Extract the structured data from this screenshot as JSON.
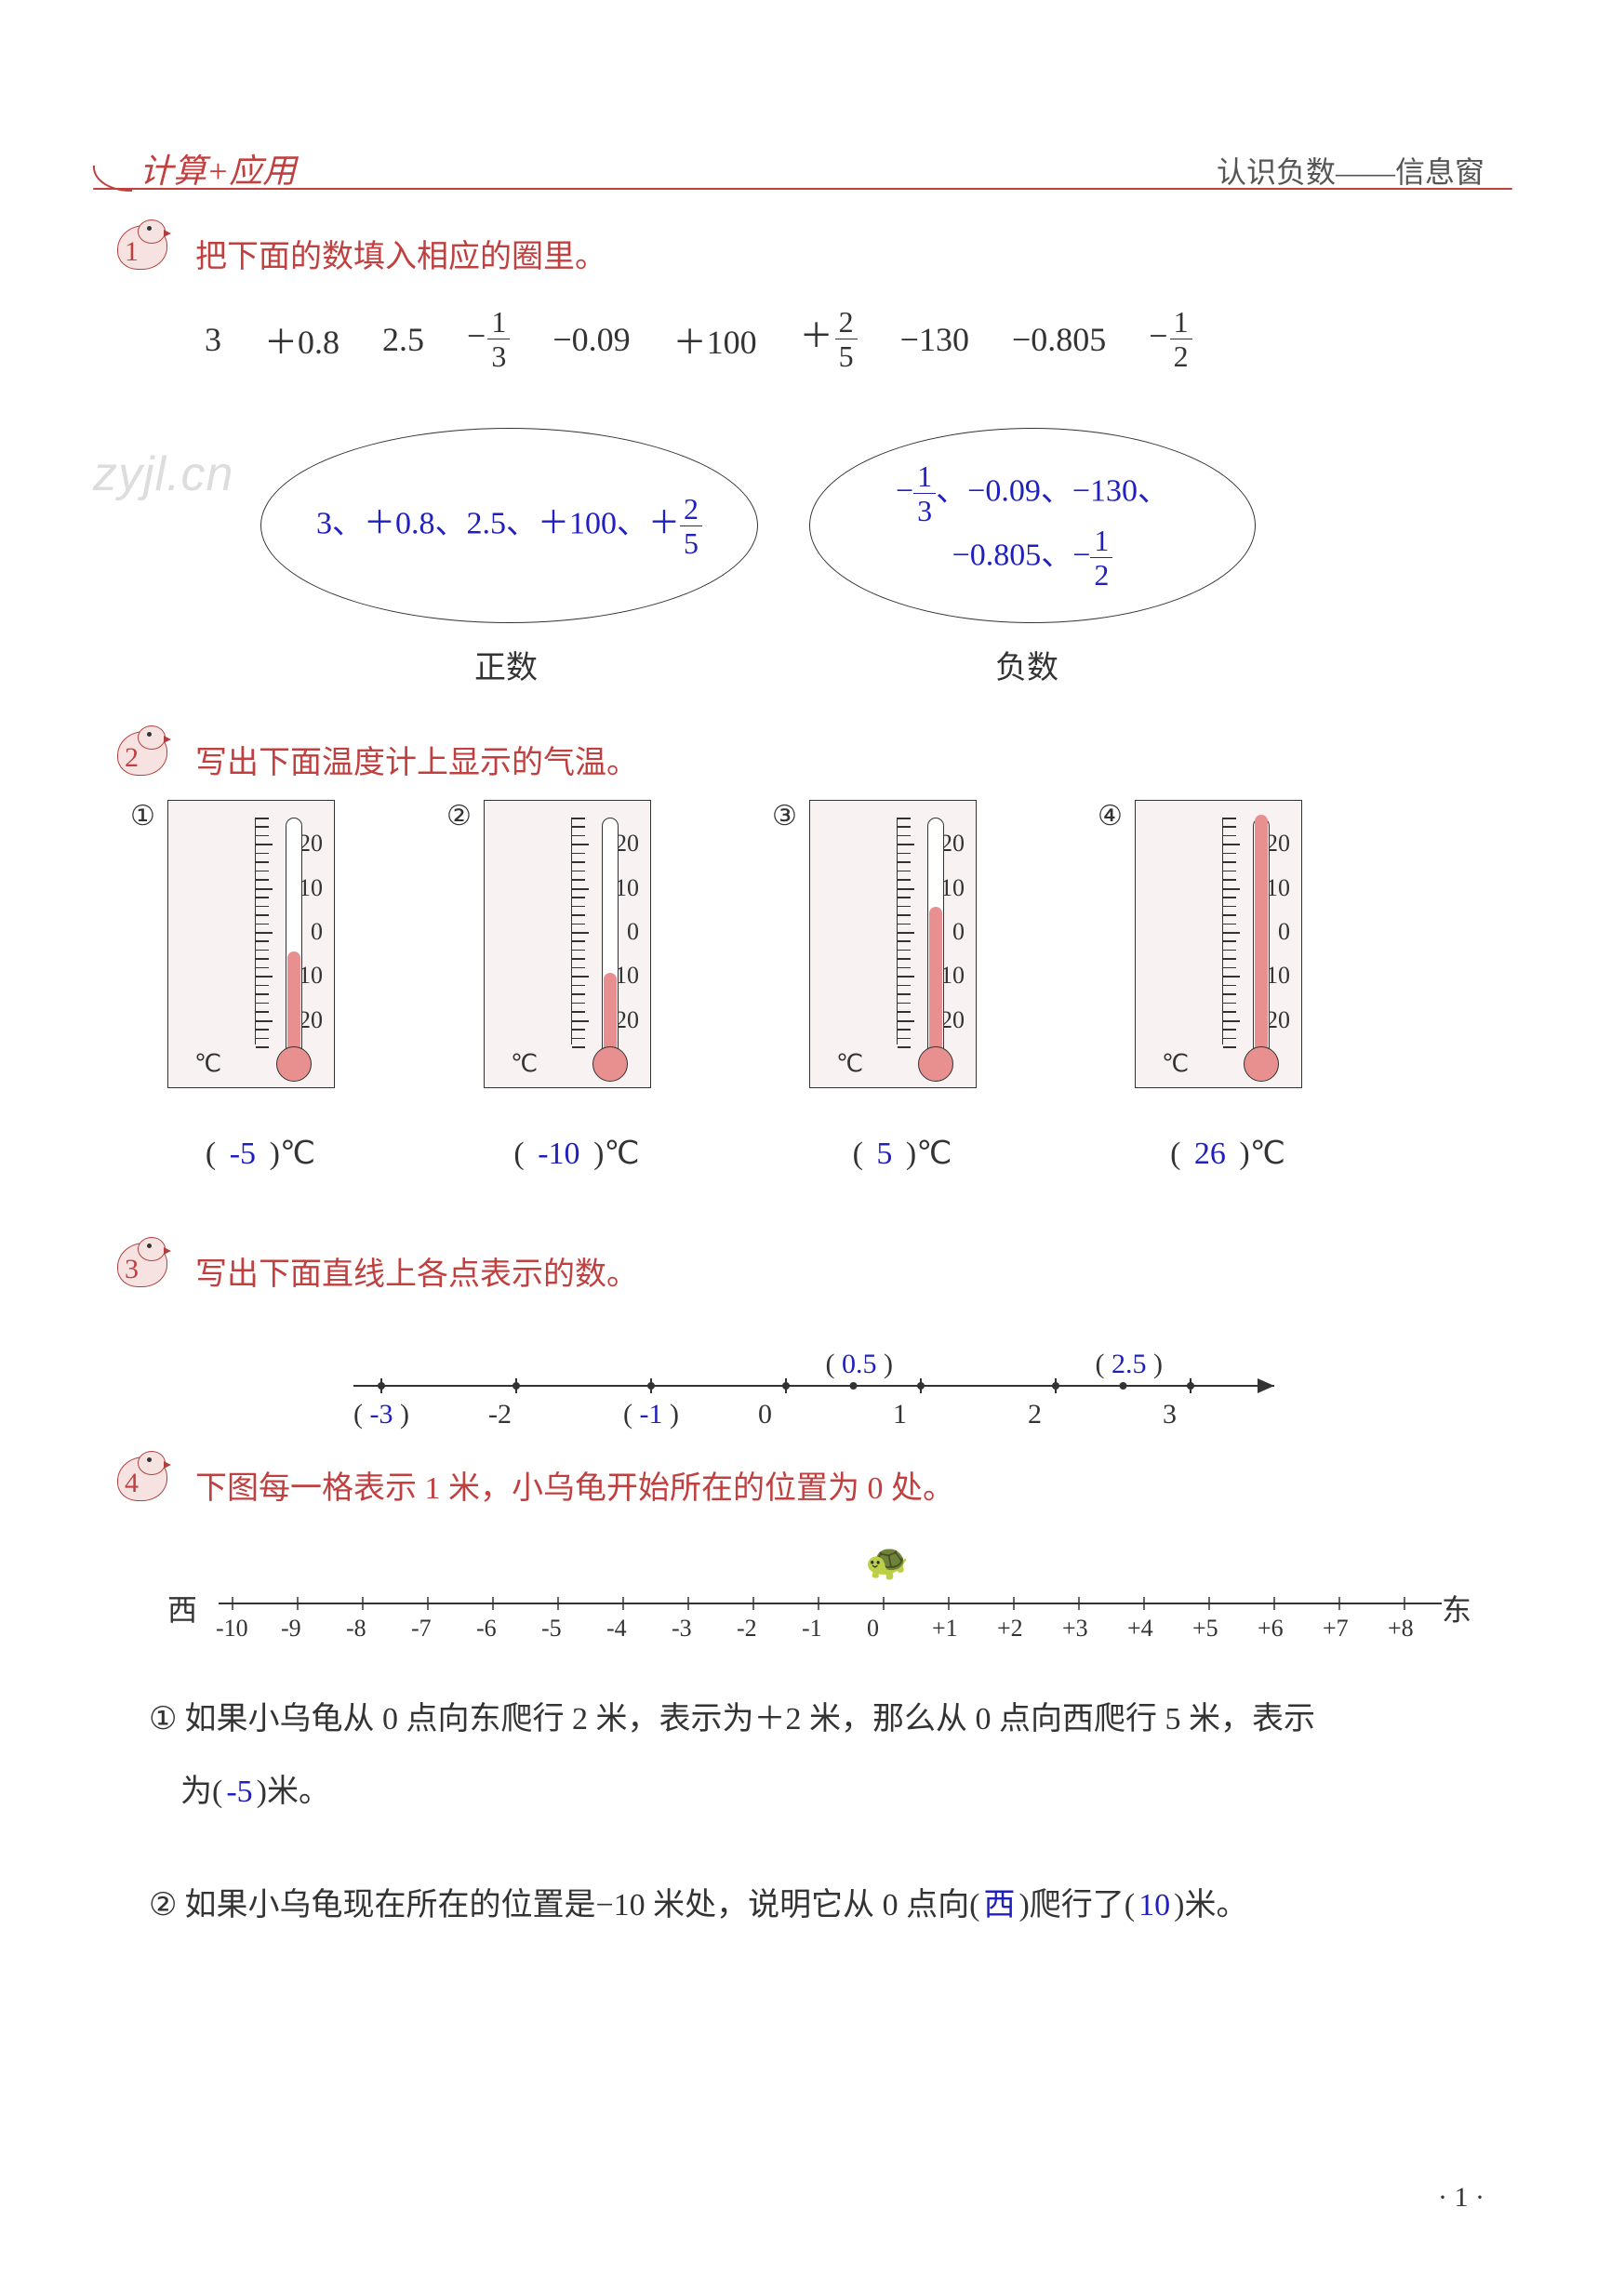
{
  "header": {
    "left": "计算+应用",
    "right": "认识负数——信息窗",
    "left_color": "#c04040",
    "right_color": "#555555"
  },
  "watermark": "zyjl.cn",
  "q1": {
    "badge_number": "1",
    "prompt": "把下面的数填入相应的圈里。",
    "numbers": [
      "3",
      "+0.8",
      "2.5",
      "−1/3",
      "−0.09",
      "+100",
      "+2/5",
      "−130",
      "−0.805",
      "−1/2"
    ],
    "positive": {
      "label": "正数",
      "content_line": "3、＋0.8、2.5、＋100、＋2/5"
    },
    "negative": {
      "label": "负数",
      "content_line1": "−1/3、−0.09、−130、",
      "content_line2": "−0.805、−1/2"
    },
    "answer_color": "#2020c0"
  },
  "q2": {
    "badge_number": "2",
    "prompt": "写出下面温度计上显示的气温。",
    "unit": "℃",
    "scale_labels": [
      "20",
      "10",
      "0",
      "-10",
      "-20"
    ],
    "scale_range": {
      "max": 26,
      "min": -26
    },
    "items": [
      {
        "marker": "①",
        "value": -5,
        "answer": "-5"
      },
      {
        "marker": "②",
        "value": -10,
        "answer": "-10"
      },
      {
        "marker": "③",
        "value": 5,
        "answer": "5"
      },
      {
        "marker": "④",
        "value": 26,
        "answer": "26"
      }
    ],
    "fill_color": "#e89090",
    "box_bg": "#f8f2f2"
  },
  "q3": {
    "badge_number": "3",
    "prompt": "写出下面直线上各点表示的数。",
    "ticks": [
      -3,
      -2,
      -1,
      0,
      1,
      2,
      3
    ],
    "printed_labels": {
      "-2": "-2",
      "0": "0",
      "1": "1",
      "2": "2",
      "3": "3"
    },
    "answers_below": {
      "-3": "-3",
      "-1": "-1"
    },
    "answers_above": {
      "0.5": "0.5",
      "2.5": "2.5"
    },
    "extra_points": [
      0.5,
      2.5
    ],
    "paren_color": "#333333",
    "answer_color": "#2020c0"
  },
  "q4": {
    "badge_number": "4",
    "prompt": "下图每一格表示 1 米，小乌龟开始所在的位置为 0 处。",
    "west_label": "西",
    "east_label": "东",
    "ticks": [
      -10,
      -9,
      -8,
      -7,
      -6,
      -5,
      -4,
      -3,
      -2,
      -1,
      0,
      1,
      2,
      3,
      4,
      5,
      6,
      7,
      8
    ],
    "tick_labels": [
      "-10",
      "-9",
      "-8",
      "-7",
      "-6",
      "-5",
      "-4",
      "-3",
      "-2",
      "-1",
      "0",
      "+1",
      "+2",
      "+3",
      "+4",
      "+5",
      "+6",
      "+7",
      "+8"
    ],
    "turtle_at": 0,
    "sub1": {
      "marker": "①",
      "text_before": "如果小乌龟从 0 点向东爬行 2 米，表示为＋2 米，那么从 0 点向西爬行 5 米，表示",
      "text_line2_before": "为(",
      "answer": "-5",
      "text_line2_after": ")米。"
    },
    "sub2": {
      "marker": "②",
      "text_before": "如果小乌龟现在所在的位置是−10 米处，说明它从 0 点向(",
      "answer1": "西",
      "text_mid": ")爬行了(",
      "answer2": "10",
      "text_after": ")米。"
    }
  },
  "page_number": "· 1 ·",
  "colors": {
    "red": "#c04040",
    "blue": "#2020c0",
    "text": "#333333",
    "thermo_fill": "#e89090",
    "thermo_bg": "#f8f2f2",
    "ellipse_border": "#333333"
  }
}
